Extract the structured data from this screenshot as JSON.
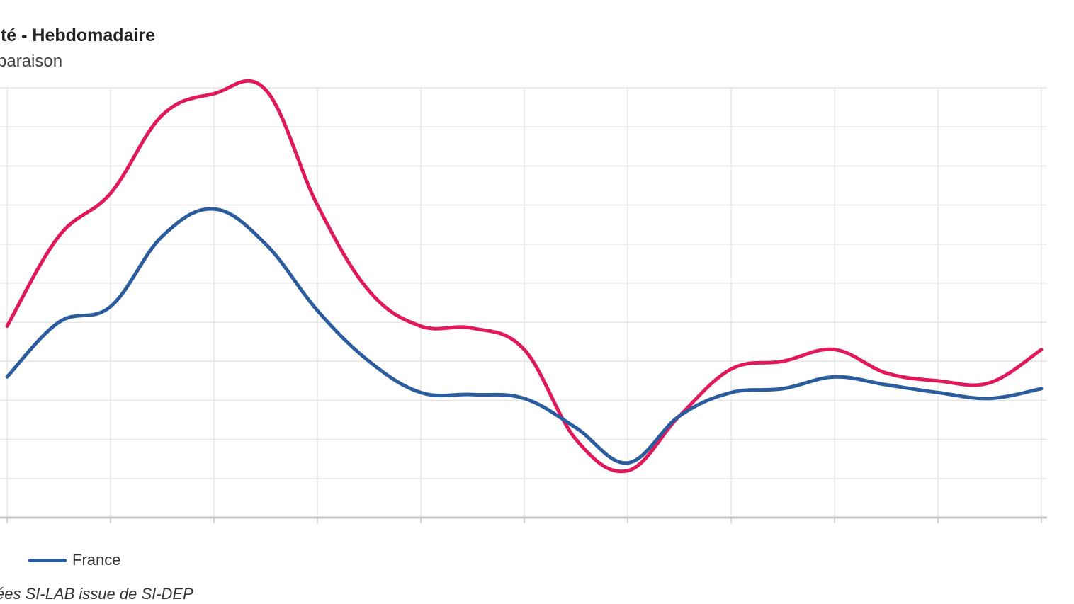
{
  "header": {
    "title": "ité - Hebdomadaire",
    "subtitle": "paraison"
  },
  "legend": {
    "items": [
      {
        "label": "France",
        "color": "#2b5c9e"
      }
    ]
  },
  "source": {
    "text": "ées SI-LAB issue de SI-DEP"
  },
  "chart_data": {
    "type": "line",
    "title": "ité - Hebdomadaire",
    "subtitle": "paraison",
    "xlabel": "",
    "ylabel": "",
    "grid": true,
    "legend_position": "bottom-left",
    "x": [
      0,
      1,
      2,
      3,
      4,
      5,
      6,
      7,
      8,
      9,
      10,
      11,
      12,
      13,
      14,
      15,
      16,
      17,
      18,
      19,
      20
    ],
    "xlim": [
      0,
      20
    ],
    "ylim": [
      0,
      11
    ],
    "series": [
      {
        "name": "France",
        "color": "#2b5c9e",
        "values": [
          3.6,
          5.0,
          5.4,
          7.2,
          7.9,
          7.0,
          5.3,
          4.0,
          3.2,
          3.15,
          3.05,
          2.3,
          1.4,
          2.6,
          3.2,
          3.3,
          3.6,
          3.4,
          3.2,
          3.05,
          3.3
        ]
      },
      {
        "name": "",
        "color": "#e0195a",
        "values": [
          4.9,
          7.2,
          8.3,
          10.3,
          10.85,
          10.95,
          8.0,
          5.8,
          4.9,
          4.85,
          4.3,
          2.0,
          1.2,
          2.6,
          3.8,
          4.0,
          4.3,
          3.7,
          3.5,
          3.45,
          4.3
        ]
      }
    ]
  }
}
